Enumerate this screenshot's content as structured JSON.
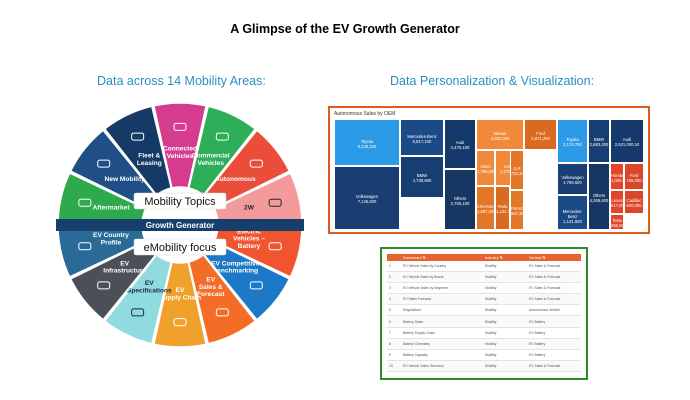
{
  "header": {
    "title": "A Glimpse of the EV Growth Generator",
    "left_subtitle": "Data across 14 Mobility Areas:",
    "right_subtitle": "Data Personalization & Visualization:"
  },
  "wheel": {
    "band_label": "Growth Generator",
    "mobility_label": "Mobility Topics",
    "emobility_label": "eMobility focus",
    "top_segments": [
      {
        "label": "Aftermarket",
        "color": "#2eaa4c",
        "icon": "wrench-shield-icon"
      },
      {
        "label": "New Mobility",
        "color": "#1f4f86",
        "icon": "scooter-icon"
      },
      {
        "label": "Fleet &\nLeasing",
        "color": "#153a66",
        "icon": "car-fleet-icon"
      },
      {
        "label": "Connected\nVehicles",
        "color": "#d63c8e",
        "icon": "connected-car-icon"
      },
      {
        "label": "Commercial\nVehicles",
        "color": "#2fae5a",
        "icon": "truck-icon"
      },
      {
        "label": "Autonomous",
        "color": "#ea4d39",
        "icon": "autonomous-car-icon"
      },
      {
        "label": "2W",
        "color": "#f39a9a",
        "icon": "motorbike-icon"
      }
    ],
    "bottom_segments": [
      {
        "label": "Electric\nVehicles –\nBattery",
        "color": "#f0552f",
        "icon": "battery-car-icon"
      },
      {
        "label": "EV Competitive\nBenchmarking",
        "color": "#1d79c8",
        "icon": "car-compare-icon"
      },
      {
        "label": "EV\nSales &\nForecast",
        "color": "#f46d27",
        "icon": "dollar-chart-icon"
      },
      {
        "label": "EV\nSupply Chain",
        "color": "#f0a12c",
        "icon": "supply-chain-icon"
      },
      {
        "label": "EV\nSpecifications",
        "color": "#8fdbe0",
        "icon": "ev-spec-icon"
      },
      {
        "label": "EV\nInfrastructure",
        "color": "#4a4f58",
        "icon": "charging-truck-icon"
      },
      {
        "label": "EV Country\nProfile",
        "color": "#2a6a96",
        "icon": "charger-icon"
      }
    ]
  },
  "treemap": {
    "title": "Autonomous Sales by OEM",
    "tiles": [
      {
        "name": "Toyota",
        "value": "9,130,100",
        "color": "#2b9be8"
      },
      {
        "name": "Volkswagen",
        "value": "7,145,600",
        "color": "#1a3d73"
      },
      {
        "name": "Mercedes-Benz",
        "value": "5,817,100",
        "color": "#1b4a86"
      },
      {
        "name": "BMW",
        "value": "4,738,600",
        "color": "#163e72"
      },
      {
        "name": "Audi",
        "value": "4,476,100",
        "color": "#15396a"
      },
      {
        "name": "Others",
        "value": "2,705,100",
        "color": "#173762"
      },
      {
        "name": "Nissan",
        "value": "3,002,000",
        "color": "#f0893a"
      },
      {
        "name": "Ford",
        "value": "2,971,200",
        "color": "#d96a1f"
      },
      {
        "name": "Volvo",
        "value": "1,795,000",
        "color": "#f0893a"
      },
      {
        "name": "Lexus",
        "value": "1,270,000",
        "color": "#f0893a"
      },
      {
        "name": "Chevrolet",
        "value": "1,687,000",
        "color": "#e27728"
      },
      {
        "name": "Tesla",
        "value": "1,132,700",
        "color": "#d86b1f"
      },
      {
        "name": "JLR",
        "value": "722,200",
        "color": "#e27728"
      },
      {
        "name": "Porsche",
        "value": "567,300",
        "color": "#e27728"
      },
      {
        "name": "Toyota",
        "value": "2,174,700",
        "color": "#2b9be8"
      },
      {
        "name": "Volkswagen",
        "value": "1,766,500",
        "color": "#1a3d73"
      },
      {
        "name": "Mercedes-Benz",
        "value": "1,121,500",
        "color": "#1b4a86"
      },
      {
        "name": "BMW",
        "value": "2,683,200",
        "color": "#163e72"
      },
      {
        "name": "Audi",
        "value": "2,521,000.34",
        "color": "#15396a"
      },
      {
        "name": "Others",
        "value": "4,266,600",
        "color": "#173762"
      },
      {
        "name": "Honda",
        "value": "1,000,000",
        "color": "#e2452a"
      },
      {
        "name": "Ford",
        "value": "765,000",
        "color": "#d9462a"
      },
      {
        "name": "Lexus",
        "value": "617,000",
        "color": "#e2452a"
      },
      {
        "name": "Cadillac",
        "value": "500,000",
        "color": "#d9462a"
      },
      {
        "name": "Tesla",
        "value": "395,000",
        "color": "#e2452a"
      }
    ]
  },
  "table": {
    "headers": [
      "",
      "Dashboard ⇅",
      "Industry ⇅",
      "Vertical ⇅"
    ],
    "rows": [
      [
        "1",
        "EV Vehicle Sales by Country",
        "Mobility",
        "EV Sales & Forecast"
      ],
      [
        "2",
        "EV Vehicle Sales by Brand",
        "Mobility",
        "EV Sales & Forecast"
      ],
      [
        "3",
        "EV Vehicle Sales by Segment",
        "Mobility",
        "EV Sales & Forecast"
      ],
      [
        "4",
        "EV Sales Forecast",
        "Mobility",
        "EV Sales & Forecast"
      ],
      [
        "5",
        "Regulations",
        "Mobility",
        "Autonomous Vehicle"
      ],
      [
        "6",
        "Battery Sales",
        "Mobility",
        "EV Battery"
      ],
      [
        "7",
        "Battery Supply Chain",
        "Mobility",
        "EV Battery"
      ],
      [
        "8",
        "Battery Chemistry",
        "Mobility",
        "EV Battery"
      ],
      [
        "9",
        "Battery Capacity",
        "Mobility",
        "EV Battery"
      ],
      [
        "10",
        "EV Vehicle Sales Germany",
        "Mobility",
        "EV Sales & Forecast"
      ]
    ]
  }
}
